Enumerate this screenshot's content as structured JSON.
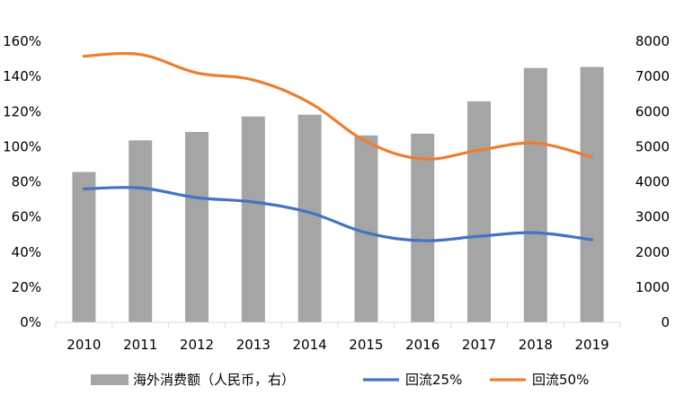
{
  "chart_data": {
    "type": "bar",
    "categories": [
      "2010",
      "2011",
      "2012",
      "2013",
      "2014",
      "2015",
      "2016",
      "2017",
      "2018",
      "2019"
    ],
    "series": [
      {
        "name": "海外消费额（人民币，右）",
        "type": "bar",
        "axis": "right",
        "color": "#a5a5a5",
        "values": [
          4280,
          5180,
          5420,
          5860,
          5910,
          5320,
          5370,
          6290,
          7240,
          7270
        ]
      },
      {
        "name": "回流25%",
        "type": "line",
        "axis": "left",
        "color": "#4472c4",
        "values": [
          76,
          76.5,
          71,
          68.5,
          62.5,
          51,
          46.5,
          49,
          51,
          47
        ]
      },
      {
        "name": "回流50%",
        "type": "line",
        "axis": "left",
        "color": "#ed7d31",
        "values": [
          151.5,
          152.5,
          142,
          138,
          125,
          103,
          93,
          98,
          102,
          94
        ]
      }
    ],
    "y_left": {
      "ylim": [
        0,
        160
      ],
      "ticks": [
        0,
        20,
        40,
        60,
        80,
        100,
        120,
        140,
        160
      ],
      "tick_labels": [
        "0%",
        "20%",
        "40%",
        "60%",
        "80%",
        "100%",
        "120%",
        "140%",
        "160%"
      ]
    },
    "y_right": {
      "ylim": [
        0,
        8000
      ],
      "ticks": [
        0,
        1000,
        2000,
        3000,
        4000,
        5000,
        6000,
        7000,
        8000
      ],
      "tick_labels": [
        "0",
        "1000",
        "2000",
        "3000",
        "4000",
        "5000",
        "6000",
        "7000",
        "8000"
      ]
    },
    "title": "",
    "xlabel": "",
    "ylabel": "",
    "grid": false,
    "legend": "bottom"
  }
}
